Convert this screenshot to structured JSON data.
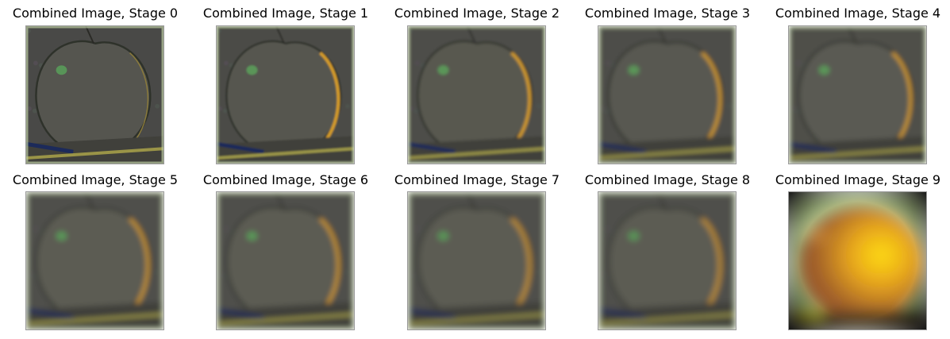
{
  "figure": {
    "panels": [
      {
        "title": "Combined Image, Stage 0",
        "image": "apple-edge-detail",
        "blur": 0.4,
        "bg": "#4a4a46",
        "tint": "#55554f"
      },
      {
        "title": "Combined Image, Stage 1",
        "image": "apple-band-pass",
        "blur": 1.2,
        "bg": "#4c4c47",
        "tint": "#57574f"
      },
      {
        "title": "Combined Image, Stage 2",
        "image": "apple-band-pass",
        "blur": 2.0,
        "bg": "#4d4d48",
        "tint": "#585850"
      },
      {
        "title": "Combined Image, Stage 3",
        "image": "apple-band-pass",
        "blur": 2.6,
        "bg": "#4e4e49",
        "tint": "#595951"
      },
      {
        "title": "Combined Image, Stage 4",
        "image": "apple-band-pass",
        "blur": 3.0,
        "bg": "#4f4f4a",
        "tint": "#5a5a52"
      },
      {
        "title": "Combined Image, Stage 5",
        "image": "apple-band-pass",
        "blur": 3.4,
        "bg": "#50504b",
        "tint": "#5b5b53"
      },
      {
        "title": "Combined Image, Stage 6",
        "image": "apple-band-pass",
        "blur": 3.6,
        "bg": "#50504b",
        "tint": "#5b5b53"
      },
      {
        "title": "Combined Image, Stage 7",
        "image": "apple-band-pass",
        "blur": 3.8,
        "bg": "#50504b",
        "tint": "#5b5b53"
      },
      {
        "title": "Combined Image, Stage 8",
        "image": "apple-band-pass",
        "blur": 4.0,
        "bg": "#50504b",
        "tint": "#5b5b53"
      },
      {
        "title": "Combined Image, Stage 9",
        "image": "apple-low-pass",
        "blur": 9.0,
        "bg": "#8fa870",
        "tint": "#d98a1a"
      }
    ]
  }
}
